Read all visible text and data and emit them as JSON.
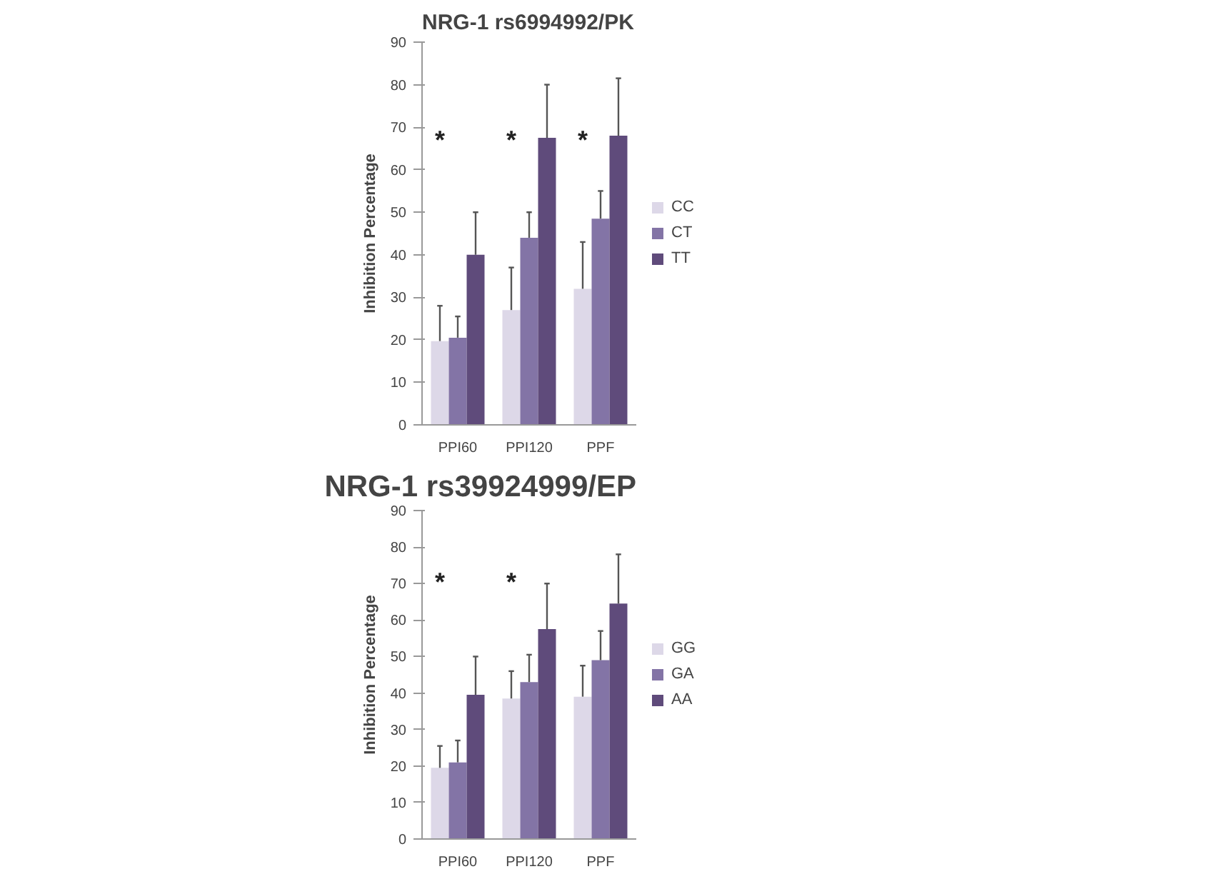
{
  "chart_data": [
    {
      "type": "bar",
      "title": "NRG-1 rs6994992/PK",
      "ylabel": "Inhibition Percentage",
      "categories": [
        "PPI60",
        "PPI120",
        "PPF"
      ],
      "ylim": [
        0,
        90
      ],
      "yticks": [
        0,
        10,
        20,
        30,
        40,
        50,
        60,
        70,
        80,
        90
      ],
      "grid": false,
      "legend": "right",
      "series": [
        {
          "name": "CC",
          "color": "#ddd8e8",
          "values": [
            19.7,
            27,
            32
          ],
          "errors": [
            [
              19.7,
              28
            ],
            [
              27,
              37
            ],
            [
              32,
              43
            ]
          ]
        },
        {
          "name": "CT",
          "color": "#8374a6",
          "values": [
            20.5,
            44,
            48.5
          ],
          "errors": [
            [
              20.5,
              25.5
            ],
            [
              44,
              50
            ],
            [
              48.5,
              55
            ]
          ]
        },
        {
          "name": "TT",
          "color": "#5f4b7b",
          "values": [
            40,
            67.5,
            68
          ],
          "errors": [
            [
              40,
              50
            ],
            [
              67.5,
              80
            ],
            [
              68,
              81.5
            ]
          ]
        }
      ],
      "annotations": [
        "*",
        "*",
        "*"
      ]
    },
    {
      "type": "bar",
      "title": "NRG-1 rs39924999/EP",
      "ylabel": "Inhibition Percentage",
      "categories": [
        "PPI60",
        "PPI120",
        "PPF"
      ],
      "ylim": [
        0,
        90
      ],
      "yticks": [
        0,
        10,
        20,
        30,
        40,
        50,
        60,
        70,
        80,
        90
      ],
      "grid": false,
      "legend": "right",
      "series": [
        {
          "name": "GG",
          "color": "#ddd8e8",
          "values": [
            19.5,
            38.5,
            39
          ],
          "errors": [
            [
              19.5,
              25.5
            ],
            [
              38.5,
              46
            ],
            [
              39,
              47.5
            ]
          ]
        },
        {
          "name": "GA",
          "color": "#8374a6",
          "values": [
            21,
            43,
            49
          ],
          "errors": [
            [
              21,
              27
            ],
            [
              43,
              50.5
            ],
            [
              49,
              57
            ]
          ]
        },
        {
          "name": "AA",
          "color": "#5f4b7b",
          "values": [
            39.5,
            57.5,
            64.5
          ],
          "errors": [
            [
              39.5,
              50
            ],
            [
              57.5,
              70
            ],
            [
              64.5,
              78
            ]
          ]
        }
      ],
      "annotations": [
        "*",
        "*"
      ]
    }
  ]
}
